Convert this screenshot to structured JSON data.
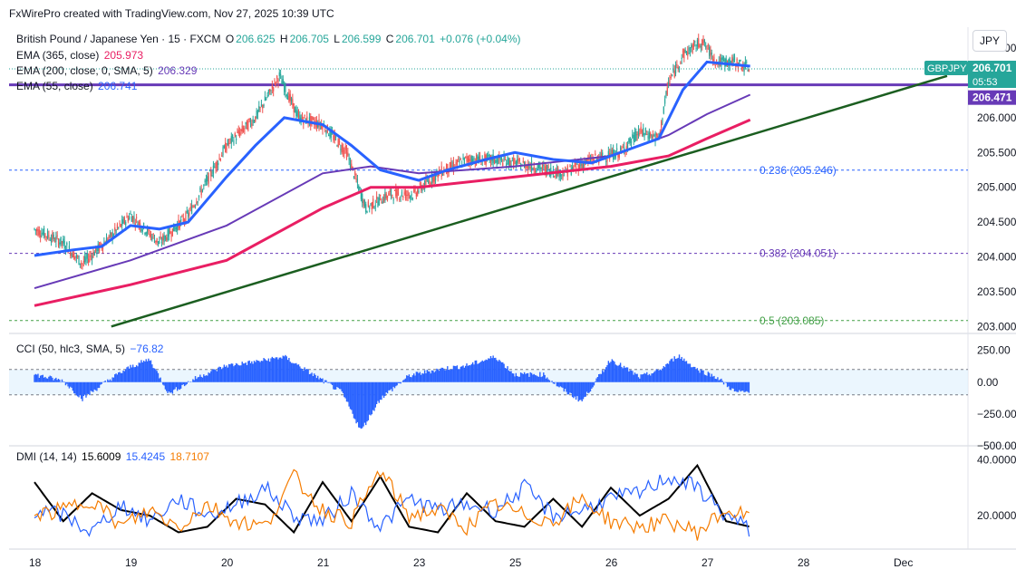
{
  "header": {
    "credit": "FxWirePro created with TradingView.com, Nov 27, 2025 10:39 UTC"
  },
  "currency_button": "JPY",
  "main_legend": {
    "symbol": "British Pound / Japanese Yen · 15 · FXCM",
    "o_label": "O",
    "o": "206.625",
    "h_label": "H",
    "h": "206.705",
    "l_label": "L",
    "l": "206.599",
    "c_label": "C",
    "c": "206.701",
    "change": "+0.076 (+0.04%)",
    "ema365_label": "EMA (365, close)",
    "ema365": "205.973",
    "ema200_label": "EMA (200, close, 0, SMA, 5)",
    "ema200": "206.329",
    "ema55_label": "EMA (55, close)",
    "ema55": "206.741"
  },
  "badges": {
    "symbol": "GBPJPY",
    "price": "206.701",
    "countdown": "05:53",
    "level": "206.471"
  },
  "fib_labels": [
    "0.236 (205.246)",
    "0.382 (204.051)",
    "0.5 (203.085)"
  ],
  "cci_legend": {
    "label": "CCI (50, hlc3, SMA, 5)",
    "value": "−76.82"
  },
  "dmi_legend": {
    "label": "DMI (14, 14)",
    "adx": "15.6009",
    "plus_di": "15.4245",
    "minus_di": "18.7107"
  },
  "colors": {
    "up": "#26a69a",
    "down": "#ef5350",
    "ema55": "#2962ff",
    "ema200": "#673ab7",
    "ema365": "#e91e63",
    "trend": "#1b5e20",
    "hline": "#673ab7",
    "fib1": "#2962ff",
    "fib2": "#673ab7",
    "fib3": "#43a047",
    "cci": "#2962ff",
    "adx": "#000000",
    "plus_di": "#2962ff",
    "minus_di": "#f57c00"
  },
  "chart_data": [
    {
      "type": "candlestick",
      "title": "British Pound / Japanese Yen · 15 · FXCM",
      "x_tick_labels": [
        "18",
        "19",
        "20",
        "21",
        "23",
        "25",
        "26",
        "27",
        "28",
        "Dec"
      ],
      "y_tick_labels": [
        "207.000",
        "206.500",
        "206.000",
        "205.500",
        "205.000",
        "204.500",
        "204.000",
        "203.500",
        "203.000"
      ],
      "ylim": [
        202.9,
        207.3
      ],
      "close_path": [
        {
          "day": 0.0,
          "price": 204.4
        },
        {
          "day": 0.3,
          "price": 204.2
        },
        {
          "day": 0.5,
          "price": 203.9
        },
        {
          "day": 0.8,
          "price": 204.3
        },
        {
          "day": 1.0,
          "price": 204.6
        },
        {
          "day": 1.3,
          "price": 204.2
        },
        {
          "day": 1.6,
          "price": 204.6
        },
        {
          "day": 2.0,
          "price": 205.6
        },
        {
          "day": 2.3,
          "price": 206.0
        },
        {
          "day": 2.55,
          "price": 206.6
        },
        {
          "day": 2.75,
          "price": 206.0
        },
        {
          "day": 3.0,
          "price": 205.9
        },
        {
          "day": 3.25,
          "price": 205.5
        },
        {
          "day": 3.45,
          "price": 204.7
        },
        {
          "day": 3.7,
          "price": 204.9
        },
        {
          "day": 3.95,
          "price": 204.9
        },
        {
          "day": 4.2,
          "price": 205.2
        },
        {
          "day": 4.5,
          "price": 205.4
        },
        {
          "day": 4.8,
          "price": 205.4
        },
        {
          "day": 5.2,
          "price": 205.3
        },
        {
          "day": 5.5,
          "price": 205.2
        },
        {
          "day": 5.8,
          "price": 205.4
        },
        {
          "day": 6.1,
          "price": 205.5
        },
        {
          "day": 6.3,
          "price": 205.8
        },
        {
          "day": 6.5,
          "price": 205.7
        },
        {
          "day": 6.6,
          "price": 206.5
        },
        {
          "day": 6.75,
          "price": 206.9
        },
        {
          "day": 6.95,
          "price": 207.1
        },
        {
          "day": 7.1,
          "price": 206.8
        },
        {
          "day": 7.3,
          "price": 206.8
        },
        {
          "day": 7.45,
          "price": 206.7
        }
      ],
      "ema55": [
        {
          "day": 0.0,
          "price": 204.02
        },
        {
          "day": 0.4,
          "price": 204.1
        },
        {
          "day": 0.7,
          "price": 204.15
        },
        {
          "day": 1.0,
          "price": 204.45
        },
        {
          "day": 1.3,
          "price": 204.4
        },
        {
          "day": 1.6,
          "price": 204.5
        },
        {
          "day": 2.0,
          "price": 205.15
        },
        {
          "day": 2.3,
          "price": 205.6
        },
        {
          "day": 2.6,
          "price": 206.0
        },
        {
          "day": 3.0,
          "price": 205.9
        },
        {
          "day": 3.3,
          "price": 205.6
        },
        {
          "day": 3.6,
          "price": 205.25
        },
        {
          "day": 4.0,
          "price": 205.1
        },
        {
          "day": 4.3,
          "price": 205.25
        },
        {
          "day": 4.7,
          "price": 205.4
        },
        {
          "day": 5.0,
          "price": 205.5
        },
        {
          "day": 5.4,
          "price": 205.4
        },
        {
          "day": 5.8,
          "price": 205.35
        },
        {
          "day": 6.2,
          "price": 205.55
        },
        {
          "day": 6.5,
          "price": 205.7
        },
        {
          "day": 6.75,
          "price": 206.4
        },
        {
          "day": 7.0,
          "price": 206.8
        },
        {
          "day": 7.45,
          "price": 206.74
        }
      ],
      "ema200": [
        {
          "day": 0.0,
          "price": 203.55
        },
        {
          "day": 1.0,
          "price": 203.95
        },
        {
          "day": 2.0,
          "price": 204.45
        },
        {
          "day": 3.0,
          "price": 205.2
        },
        {
          "day": 3.5,
          "price": 205.3
        },
        {
          "day": 4.0,
          "price": 205.2
        },
        {
          "day": 5.0,
          "price": 205.3
        },
        {
          "day": 6.0,
          "price": 205.45
        },
        {
          "day": 6.6,
          "price": 205.75
        },
        {
          "day": 7.0,
          "price": 206.05
        },
        {
          "day": 7.45,
          "price": 206.33
        }
      ],
      "ema365": [
        {
          "day": 0.0,
          "price": 203.3
        },
        {
          "day": 1.0,
          "price": 203.6
        },
        {
          "day": 2.0,
          "price": 203.95
        },
        {
          "day": 3.0,
          "price": 204.7
        },
        {
          "day": 3.5,
          "price": 205.0
        },
        {
          "day": 4.0,
          "price": 205.0
        },
        {
          "day": 5.0,
          "price": 205.15
        },
        {
          "day": 6.0,
          "price": 205.3
        },
        {
          "day": 6.6,
          "price": 205.45
        },
        {
          "day": 7.0,
          "price": 205.7
        },
        {
          "day": 7.45,
          "price": 205.97
        }
      ],
      "trendline": [
        {
          "day": 0.8,
          "price": 203.0
        },
        {
          "day": 9.5,
          "price": 206.6
        }
      ],
      "horizontal_level": 206.471,
      "fib_levels": [
        205.246,
        204.051,
        203.085
      ]
    },
    {
      "type": "area",
      "title": "CCI (50, hlc3, SMA, 5)",
      "y_tick_labels": [
        "250.00",
        "0.00",
        "−250.00",
        "−500.00"
      ],
      "ylim": [
        -500,
        340
      ],
      "bands": [
        -100,
        100
      ],
      "x": [
        0,
        0.3,
        0.5,
        0.8,
        1.0,
        1.2,
        1.4,
        1.7,
        2.0,
        2.3,
        2.6,
        2.9,
        3.2,
        3.4,
        3.6,
        3.9,
        4.2,
        4.5,
        4.8,
        5.0,
        5.3,
        5.5,
        5.7,
        6.0,
        6.3,
        6.5,
        6.7,
        6.9,
        7.1,
        7.3,
        7.45
      ],
      "values": [
        60,
        10,
        -130,
        30,
        120,
        180,
        -90,
        40,
        130,
        160,
        200,
        60,
        -80,
        -380,
        -130,
        50,
        100,
        130,
        200,
        60,
        60,
        -60,
        -150,
        180,
        40,
        90,
        210,
        100,
        40,
        -80,
        -77
      ]
    },
    {
      "type": "line",
      "title": "DMI (14, 14)",
      "y_tick_labels": [
        "40.0000",
        "20.0000"
      ],
      "ylim": [
        8,
        45
      ],
      "series": [
        {
          "name": "15.6009",
          "x": [
            0,
            0.3,
            0.6,
            0.9,
            1.2,
            1.5,
            1.8,
            2.1,
            2.4,
            2.7,
            3.0,
            3.3,
            3.6,
            3.9,
            4.2,
            4.5,
            4.8,
            5.1,
            5.4,
            5.7,
            6.0,
            6.3,
            6.6,
            6.9,
            7.2,
            7.45
          ],
          "values": [
            32,
            18,
            28,
            22,
            20,
            14,
            16,
            26,
            24,
            14,
            32,
            18,
            34,
            16,
            14,
            28,
            18,
            16,
            26,
            16,
            30,
            20,
            26,
            38,
            18,
            16
          ]
        },
        {
          "name": "15.4245",
          "x": [
            0,
            0.3,
            0.6,
            0.9,
            1.2,
            1.5,
            1.8,
            2.1,
            2.4,
            2.7,
            3.0,
            3.3,
            3.6,
            3.9,
            4.2,
            4.5,
            4.8,
            5.1,
            5.4,
            5.7,
            6.0,
            6.3,
            6.6,
            6.9,
            7.2,
            7.45
          ],
          "values": [
            22,
            20,
            14,
            24,
            18,
            26,
            20,
            24,
            30,
            20,
            18,
            28,
            16,
            26,
            22,
            24,
            22,
            30,
            20,
            22,
            26,
            28,
            34,
            30,
            20,
            15
          ]
        },
        {
          "name": "18.7107",
          "x": [
            0,
            0.3,
            0.6,
            0.9,
            1.2,
            1.5,
            1.8,
            2.1,
            2.4,
            2.7,
            3.0,
            3.3,
            3.6,
            3.9,
            4.2,
            4.5,
            4.8,
            5.1,
            5.4,
            5.7,
            6.0,
            6.3,
            6.6,
            6.9,
            7.2,
            7.45
          ],
          "values": [
            20,
            22,
            26,
            16,
            22,
            16,
            24,
            18,
            16,
            34,
            22,
            18,
            36,
            20,
            22,
            16,
            24,
            20,
            18,
            26,
            18,
            16,
            18,
            14,
            22,
            19
          ]
        }
      ]
    }
  ]
}
